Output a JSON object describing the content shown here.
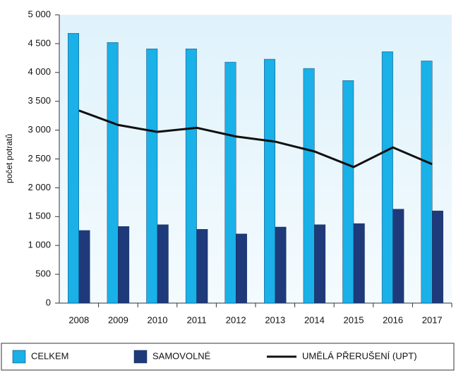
{
  "chart_data": {
    "type": "bar",
    "y_label": "počet potratů",
    "categories": [
      "2008",
      "2009",
      "2010",
      "2011",
      "2012",
      "2013",
      "2014",
      "2015",
      "2016",
      "2017"
    ],
    "series": [
      {
        "name": "CELKEM",
        "type": "bar",
        "color": "#1ab0e8",
        "values": [
          4680,
          4520,
          4410,
          4410,
          4180,
          4230,
          4070,
          3860,
          4360,
          4200
        ]
      },
      {
        "name": "SAMOVOLNÉ",
        "type": "bar",
        "color": "#1f3a7a",
        "values": [
          1260,
          1330,
          1360,
          1280,
          1200,
          1320,
          1360,
          1380,
          1630,
          1600
        ]
      },
      {
        "name": "UMĚLÁ PŘERUŠENÍ (UPT)",
        "type": "line",
        "color": "#111111",
        "values": [
          3340,
          3090,
          2970,
          3040,
          2890,
          2800,
          2630,
          2360,
          2700,
          2410
        ]
      }
    ],
    "ylim": [
      0,
      5000
    ],
    "yticks": [
      0,
      500,
      {
        "value": 1000,
        "label": "1 000"
      },
      {
        "value": 1500,
        "label": "1 500"
      },
      {
        "value": 2000,
        "label": "2 000"
      },
      {
        "value": 2500,
        "label": "2 500"
      },
      {
        "value": 3000,
        "label": "3 000"
      },
      {
        "value": 3500,
        "label": "3 500"
      },
      {
        "value": 4000,
        "label": "4 000"
      },
      {
        "value": 4500,
        "label": "4 500"
      },
      {
        "value": 5000,
        "label": "5 000"
      }
    ],
    "grid": false,
    "legend": "bottom"
  }
}
